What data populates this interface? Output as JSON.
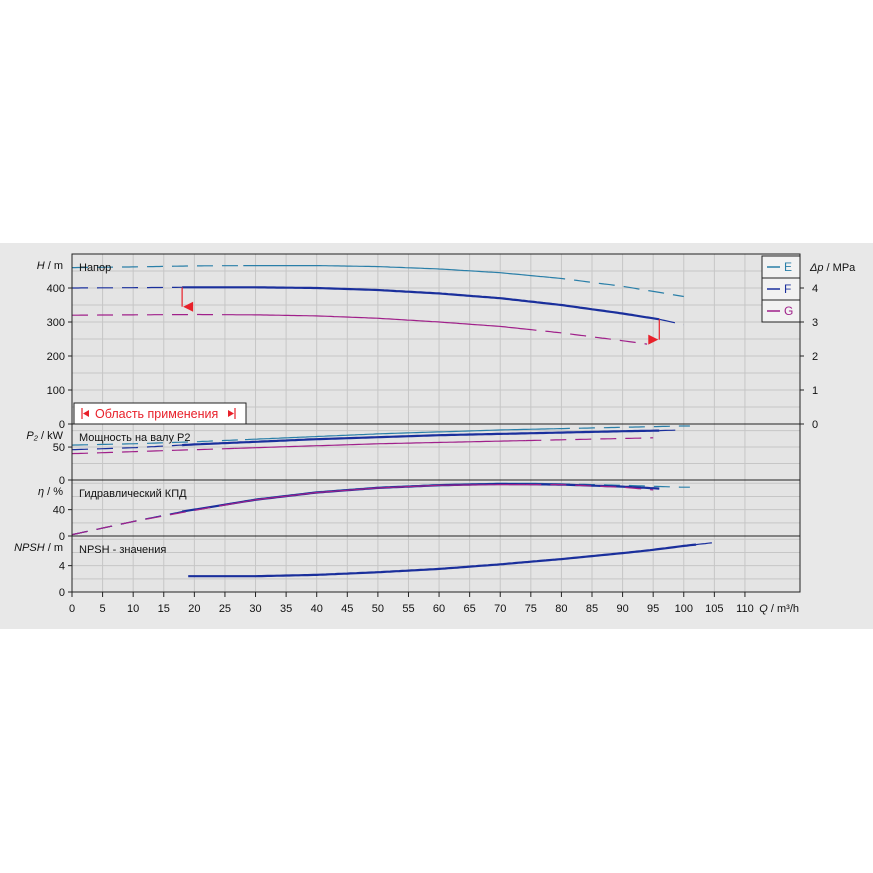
{
  "chart_data": {
    "type": "line",
    "x_axis": {
      "label_var": "Q",
      "label_unit": "m³/h",
      "range": [
        0,
        119
      ],
      "ticks": [
        0,
        5,
        10,
        15,
        20,
        25,
        30,
        35,
        40,
        45,
        50,
        55,
        60,
        65,
        70,
        75,
        80,
        85,
        90,
        95,
        100,
        105,
        110
      ]
    },
    "legend": {
      "placement": "top-right",
      "entries": [
        {
          "name": "E",
          "color": "#2a7fa8"
        },
        {
          "name": "F",
          "color": "#1a2f9c"
        },
        {
          "name": "G",
          "color": "#a0208a"
        }
      ]
    },
    "application_area": {
      "label": "Область применения",
      "q_start": 18,
      "q_end": 96,
      "color": "#e8202a"
    },
    "panels": [
      {
        "id": "head",
        "title": "Напор",
        "ylabel_var": "H",
        "ylabel_unit": "m",
        "ylim": [
          0,
          500
        ],
        "yticks": [
          0,
          100,
          200,
          300,
          400
        ],
        "right_axis": {
          "label_var": "Δp",
          "label_unit": "MPa",
          "ylim": [
            0,
            5
          ],
          "ticks": [
            0,
            1,
            2,
            3,
            4
          ]
        },
        "series": [
          {
            "name": "E",
            "color": "#2a7fa8",
            "x": [
              0,
              10,
              20,
              30,
              40,
              50,
              60,
              70,
              80,
              90,
              95,
              100
            ],
            "y": [
              460,
              462,
              465,
              466,
              466,
              463,
              456,
              445,
              428,
              405,
              390,
              375
            ],
            "dash_until": 0,
            "solid_range": null
          },
          {
            "name": "F",
            "color": "#1a2f9c",
            "x": [
              0,
              10,
              18,
              20,
              30,
              40,
              50,
              60,
              70,
              80,
              90,
              96,
              100
            ],
            "y": [
              400,
              401,
              402,
              402,
              402,
              400,
              394,
              384,
              370,
              350,
              325,
              308,
              292
            ],
            "solid_range": [
              18,
              96
            ]
          },
          {
            "name": "G",
            "color": "#a0208a",
            "x": [
              0,
              10,
              20,
              30,
              40,
              50,
              60,
              70,
              80,
              90,
              94
            ],
            "y": [
              320,
              321,
              322,
              321,
              318,
              311,
              300,
              287,
              268,
              245,
              235
            ],
            "solid_range": null
          }
        ]
      },
      {
        "id": "power",
        "title": "Мощность на валу P2",
        "ylabel_var": "P₂",
        "ylabel_unit": "kW",
        "ylim": [
          0,
          85
        ],
        "yticks": [
          0,
          50
        ],
        "series": [
          {
            "name": "E",
            "color": "#2a7fa8",
            "x": [
              0,
              10,
              20,
              30,
              40,
              50,
              60,
              70,
              80,
              90,
              100,
              101
            ],
            "y": [
              53,
              55,
              58,
              62,
              66,
              70,
              73,
              76,
              78,
              80,
              82,
              82
            ],
            "solid_range": null
          },
          {
            "name": "F",
            "color": "#1a2f9c",
            "x": [
              0,
              10,
              18,
              20,
              30,
              40,
              50,
              60,
              70,
              80,
              90,
              96,
              100
            ],
            "y": [
              46,
              49,
              53,
              54,
              58,
              62,
              65,
              68,
              70,
              72,
              74,
              75,
              76
            ],
            "solid_range": [
              18,
              96
            ]
          },
          {
            "name": "G",
            "color": "#a0208a",
            "x": [
              0,
              10,
              20,
              30,
              40,
              50,
              60,
              70,
              80,
              90,
              95
            ],
            "y": [
              40,
              43,
              46,
              49,
              52,
              55,
              57,
              59,
              61,
              63,
              64
            ],
            "solid_range": null
          }
        ]
      },
      {
        "id": "efficiency",
        "title": "Гидравлический КПД",
        "ylabel_var": "η",
        "ylabel_unit": "%",
        "ylim": [
          0,
          85
        ],
        "yticks": [
          0,
          40
        ],
        "series": [
          {
            "name": "E",
            "color": "#2a7fa8",
            "x": [
              0,
              10,
              20,
              30,
              40,
              50,
              60,
              70,
              75,
              80,
              90,
              100,
              101
            ],
            "y": [
              2,
              22,
              40,
              56,
              67,
              74,
              78,
              80,
              80,
              79,
              77,
              74,
              74
            ],
            "solid_range": null
          },
          {
            "name": "F",
            "color": "#1a2f9c",
            "x": [
              0,
              10,
              18,
              20,
              30,
              40,
              50,
              60,
              70,
              80,
              90,
              96
            ],
            "y": [
              2,
              22,
              37,
              40,
              55,
              66,
              73,
              77,
              79,
              78,
              75,
              72
            ],
            "solid_range": [
              18,
              96
            ]
          },
          {
            "name": "G",
            "color": "#a0208a",
            "x": [
              0,
              10,
              20,
              30,
              40,
              50,
              60,
              70,
              80,
              90,
              95
            ],
            "y": [
              2,
              22,
              39,
              55,
              66,
              73,
              77,
              78,
              78,
              74,
              70
            ],
            "solid_range": null
          }
        ]
      },
      {
        "id": "npsh",
        "title": "NPSH - значения",
        "ylabel_var": "NPSH",
        "ylabel_unit": "m",
        "ylim": [
          0,
          8.5
        ],
        "yticks": [
          0,
          4
        ],
        "series": [
          {
            "name": "F",
            "color": "#1a2f9c",
            "x": [
              19,
              25,
              30,
              35,
              40,
              50,
              60,
              70,
              80,
              90,
              95,
              100,
              102,
              106
            ],
            "y": [
              2.4,
              2.4,
              2.4,
              2.5,
              2.6,
              3.0,
              3.5,
              4.2,
              5.0,
              5.9,
              6.4,
              7.0,
              7.2,
              7.6
            ],
            "solid_range": [
              19,
              102
            ]
          }
        ]
      }
    ]
  }
}
